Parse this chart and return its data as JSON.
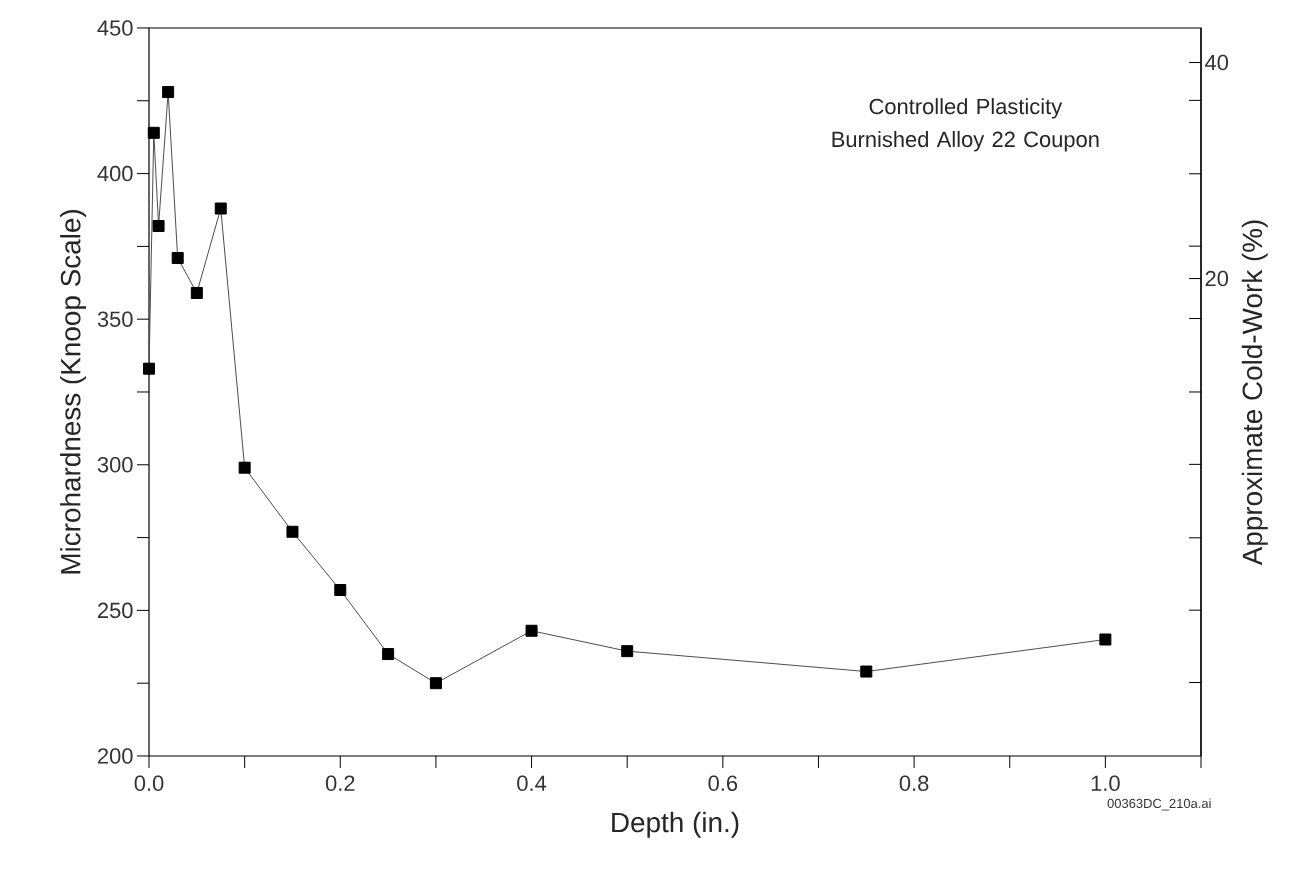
{
  "chart_data": {
    "type": "line",
    "title": "Controlled Plasticity Burnished Alloy 22 Coupon",
    "xlabel": "Depth (in.)",
    "ylabel": "Microhardness (Knoop Scale)",
    "y2label": "Approximate Cold-Work (%)",
    "annotations": [
      "00363DC_210a.ai"
    ],
    "x": [
      0,
      0.005,
      0.01,
      0.02,
      0.03,
      0.05,
      0.075,
      0.1,
      0.15,
      0.2,
      0.25,
      0.3,
      0.4,
      0.5,
      0.75,
      1.0
    ],
    "series": [
      {
        "color": "#000000",
        "values": [
          333,
          414,
          382,
          428,
          371,
          359,
          388,
          299,
          277,
          257,
          235,
          225,
          243,
          236,
          229,
          240
        ]
      }
    ],
    "xlim": [
      0,
      1.1
    ],
    "xticks": [
      {
        "value": 0,
        "label": "0.0"
      },
      {
        "value": 0.1,
        "label": null
      },
      {
        "value": 0.2,
        "label": "0.2"
      },
      {
        "value": 0.3,
        "label": null
      },
      {
        "value": 0.4,
        "label": "0.4"
      },
      {
        "value": 0.5,
        "label": null
      },
      {
        "value": 0.6,
        "label": "0.6"
      },
      {
        "value": 0.7,
        "label": null
      },
      {
        "value": 0.8,
        "label": "0.8"
      },
      {
        "value": 0.9,
        "label": null
      },
      {
        "value": 1.0,
        "label": "1.0"
      },
      {
        "value": 1.1,
        "label": null
      }
    ],
    "ylim": [
      200,
      450
    ],
    "yticks": [
      200,
      {
        "value": 225,
        "label": null
      },
      250,
      {
        "value": 275,
        "label": null
      },
      300,
      {
        "value": 325,
        "label": null
      },
      350,
      {
        "value": 375,
        "label": null
      },
      400,
      {
        "value": 425,
        "label": null
      },
      450
    ],
    "y2lim": [
      -24.2,
      43.2
    ],
    "y2ticks": [
      {
        "value": -17.4,
        "label": null
      },
      {
        "value": -10.7,
        "label": null
      },
      {
        "value": -4.0,
        "label": null
      },
      {
        "value": 2.8,
        "label": null
      },
      {
        "value": 9.5,
        "label": null
      },
      {
        "value": 16.3,
        "label": null
      },
      20,
      {
        "value": 23.0,
        "label": null
      },
      {
        "value": 29.7,
        "label": null
      },
      {
        "value": 36.5,
        "label": null
      },
      40
    ],
    "grid": false,
    "marker": "square",
    "line_style": "solid"
  }
}
